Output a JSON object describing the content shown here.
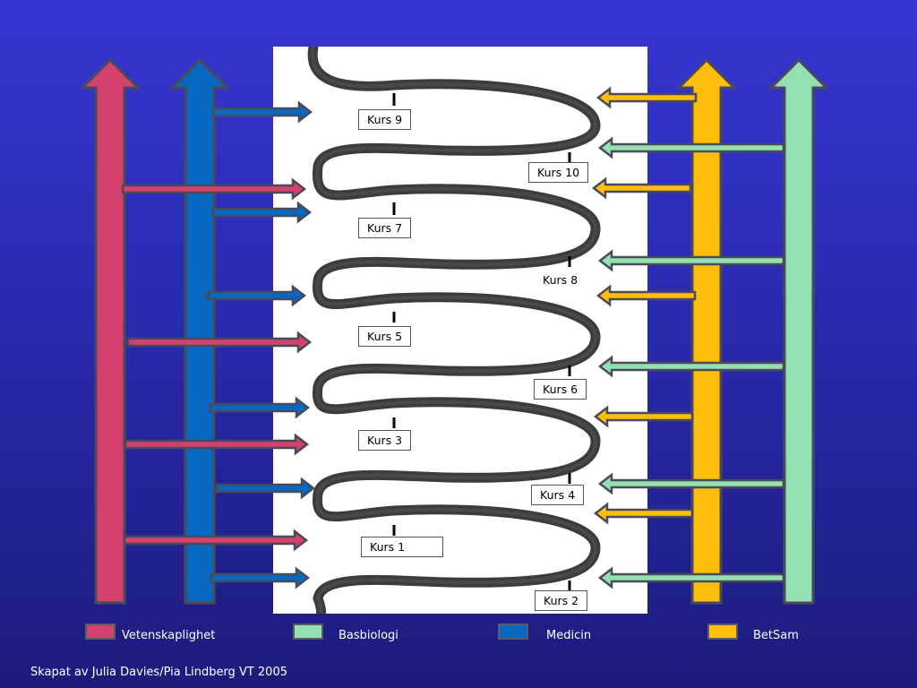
{
  "colors": {
    "vetenskaplighet": "#d4416d",
    "basbiologi": "#93e0b3",
    "medicin": "#0668c0",
    "betsam": "#ffbe0a",
    "outline": "#4a4a5a",
    "coil": "#2b2b2b"
  },
  "courses": [
    {
      "id": "kurs-9",
      "label": "Kurs 9"
    },
    {
      "id": "kurs-10",
      "label": "Kurs 10"
    },
    {
      "id": "kurs-7",
      "label": "Kurs 7"
    },
    {
      "id": "kurs-8",
      "label": "Kurs 8"
    },
    {
      "id": "kurs-5",
      "label": "Kurs 5"
    },
    {
      "id": "kurs-6",
      "label": "Kurs 6"
    },
    {
      "id": "kurs-3",
      "label": "Kurs 3"
    },
    {
      "id": "kurs-4",
      "label": "Kurs 4"
    },
    {
      "id": "kurs-1",
      "label": "Kurs 1"
    },
    {
      "id": "kurs-2",
      "label": "Kurs 2"
    }
  ],
  "legend": [
    {
      "key": "vetenskaplighet",
      "label": "Vetenskaplighet"
    },
    {
      "key": "basbiologi",
      "label": "Basbiologi"
    },
    {
      "key": "medicin",
      "label": "Medicin"
    },
    {
      "key": "betsam",
      "label": "BetSam"
    }
  ],
  "footer": "Skapat av Julia Davies/Pia Lindberg VT 2005"
}
